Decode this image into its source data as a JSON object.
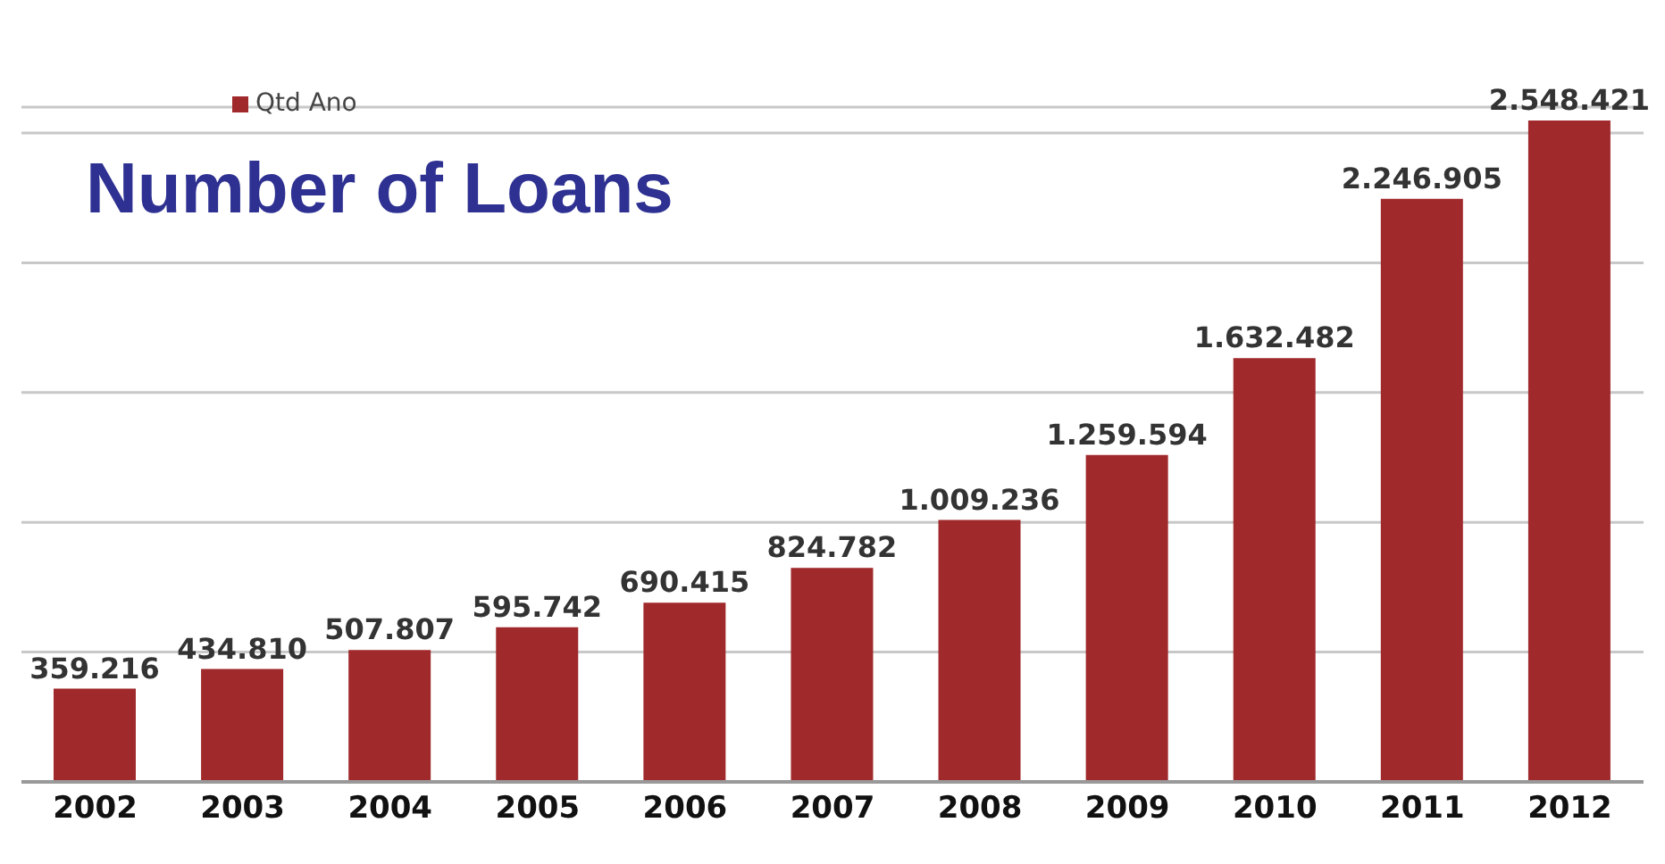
{
  "chart_data": {
    "type": "bar",
    "title": "Number of Loans",
    "categories": [
      "2002",
      "2003",
      "2004",
      "2005",
      "2006",
      "2007",
      "2008",
      "2009",
      "2010",
      "2011",
      "2012"
    ],
    "series": [
      {
        "name": "Qtd Ano",
        "color": "#a0292b",
        "values": [
          359216,
          434810,
          507807,
          595742,
          690415,
          824782,
          1009236,
          1259594,
          1632482,
          2246905,
          2548421
        ],
        "value_labels": [
          "359.216",
          "434.810",
          "507.807",
          "595.742",
          "690.415",
          "824.782",
          "1.009.236",
          "1.259.594",
          "1.632.482",
          "2.246.905",
          "2.548.421"
        ]
      }
    ],
    "ylim": [
      0,
      2600000
    ],
    "yticks": [
      {
        "value": 0,
        "label": null
      },
      {
        "value": 500000,
        "label": null
      },
      {
        "value": 1000000,
        "label": null
      },
      {
        "value": 1500000,
        "label": null
      },
      {
        "value": 2000000,
        "label": null
      },
      {
        "value": 2500000,
        "label": null
      }
    ],
    "grid": "y",
    "legend": "top left",
    "tick_labels": "x"
  }
}
